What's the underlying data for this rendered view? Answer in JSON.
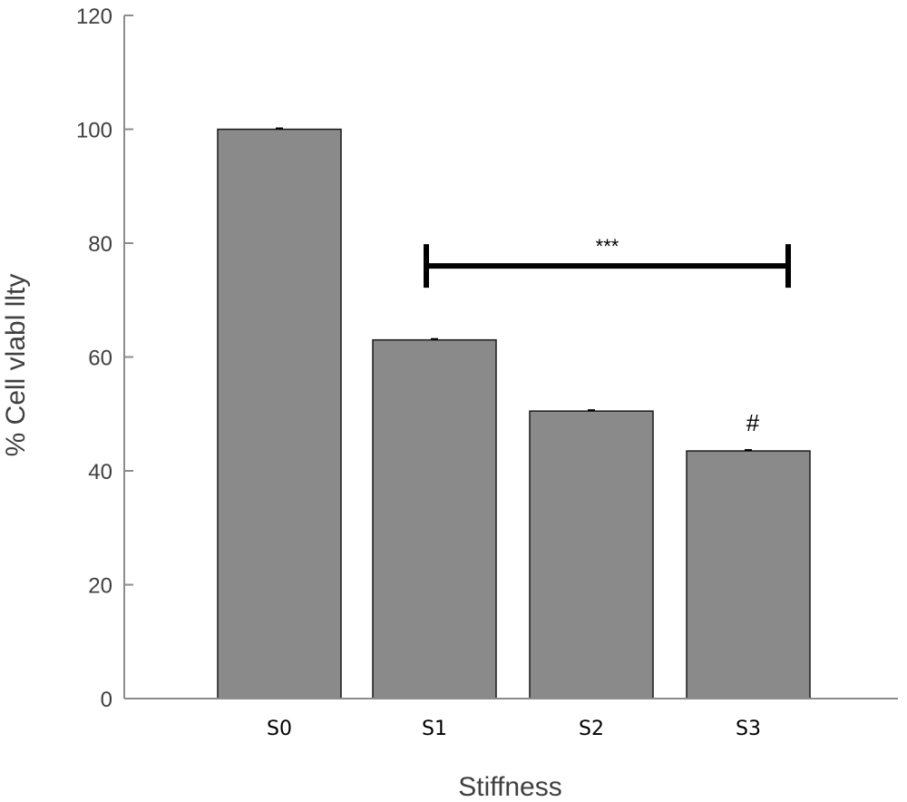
{
  "colors": {
    "bar_fill": "#8a8a8a",
    "bar_stroke": "#1a1a1a",
    "axis": "#8c8c8c",
    "text": "#404040",
    "annotation": "#000000"
  },
  "chart_data": {
    "type": "bar",
    "title": "",
    "xlabel": "Stiffness",
    "ylabel": "% Cell vlabl llty",
    "categories": [
      "S0",
      "S1",
      "S2",
      "S3"
    ],
    "values": [
      100,
      63,
      50.5,
      43.5
    ],
    "ylim": [
      0,
      120
    ],
    "yticks": [
      "0",
      "20",
      "40",
      "60",
      "80",
      "100",
      "120"
    ],
    "grid": false,
    "legend": "none",
    "annotations": {
      "bracket": {
        "from": "S1",
        "to": "S3",
        "y": 76,
        "label": "***"
      },
      "marker": {
        "category": "S3",
        "label": "#"
      }
    }
  }
}
